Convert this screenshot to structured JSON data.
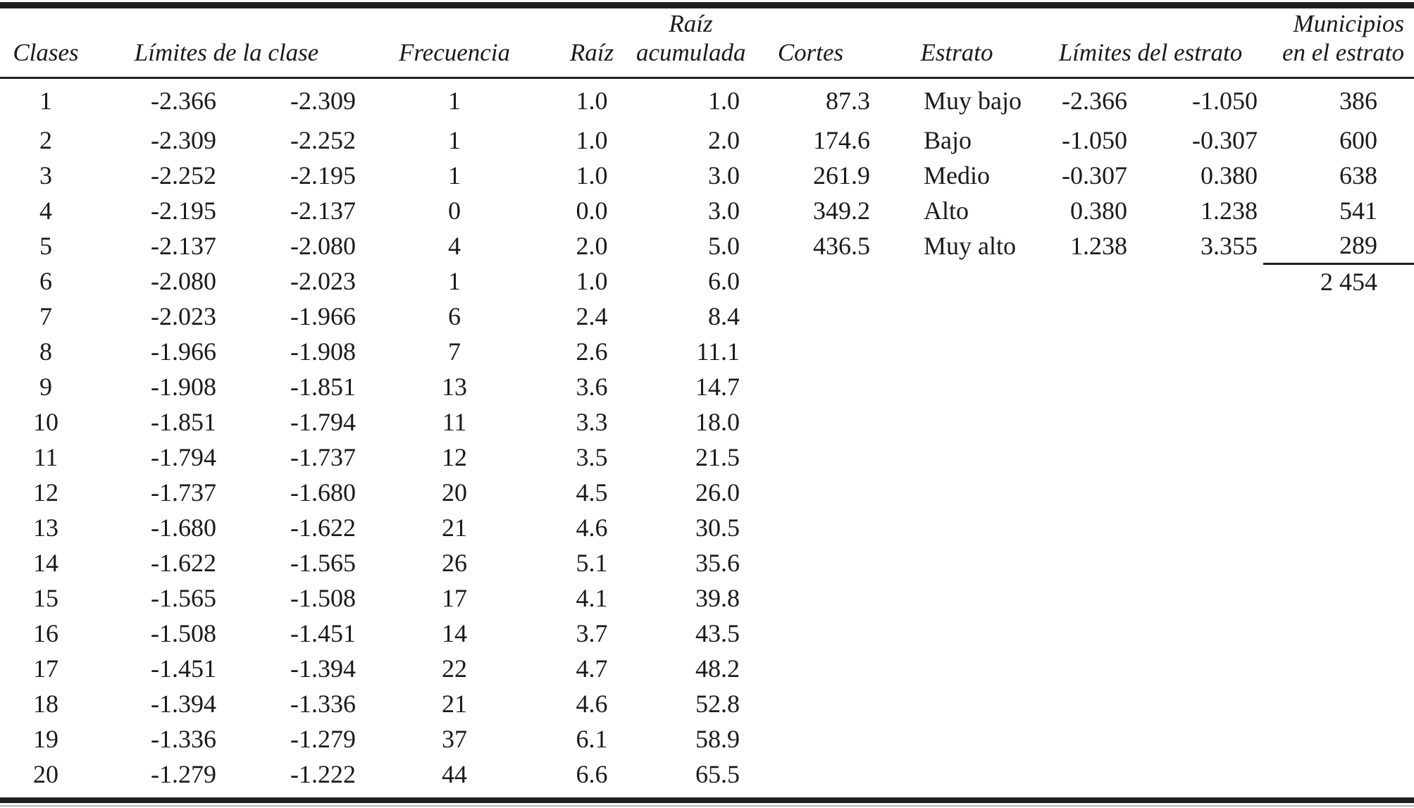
{
  "table": {
    "headers": {
      "clases": "Clases",
      "limites_clase": "Límites de la clase",
      "frecuencia": "Frecuencia",
      "raiz": "Raíz",
      "raiz_acumulada": [
        "Raíz",
        "acumulada"
      ],
      "cortes": "Cortes",
      "estrato": "Estrato",
      "limites_estrato": "Límites del estrato",
      "municipios": [
        "Municipios",
        "en el estrato"
      ]
    },
    "class_rows": [
      [
        "1",
        "-2.366",
        "-2.309",
        "1",
        "1.0",
        "1.0"
      ],
      [
        "2",
        "-2.309",
        "-2.252",
        "1",
        "1.0",
        "2.0"
      ],
      [
        "3",
        "-2.252",
        "-2.195",
        "1",
        "1.0",
        "3.0"
      ],
      [
        "4",
        "-2.195",
        "-2.137",
        "0",
        "0.0",
        "3.0"
      ],
      [
        "5",
        "-2.137",
        "-2.080",
        "4",
        "2.0",
        "5.0"
      ],
      [
        "6",
        "-2.080",
        "-2.023",
        "1",
        "1.0",
        "6.0"
      ],
      [
        "7",
        "-2.023",
        "-1.966",
        "6",
        "2.4",
        "8.4"
      ],
      [
        "8",
        "-1.966",
        "-1.908",
        "7",
        "2.6",
        "11.1"
      ],
      [
        "9",
        "-1.908",
        "-1.851",
        "13",
        "3.6",
        "14.7"
      ],
      [
        "10",
        "-1.851",
        "-1.794",
        "11",
        "3.3",
        "18.0"
      ],
      [
        "11",
        "-1.794",
        "-1.737",
        "12",
        "3.5",
        "21.5"
      ],
      [
        "12",
        "-1.737",
        "-1.680",
        "20",
        "4.5",
        "26.0"
      ],
      [
        "13",
        "-1.680",
        "-1.622",
        "21",
        "4.6",
        "30.5"
      ],
      [
        "14",
        "-1.622",
        "-1.565",
        "26",
        "5.1",
        "35.6"
      ],
      [
        "15",
        "-1.565",
        "-1.508",
        "17",
        "4.1",
        "39.8"
      ],
      [
        "16",
        "-1.508",
        "-1.451",
        "14",
        "3.7",
        "43.5"
      ],
      [
        "17",
        "-1.451",
        "-1.394",
        "22",
        "4.7",
        "48.2"
      ],
      [
        "18",
        "-1.394",
        "-1.336",
        "21",
        "4.6",
        "52.8"
      ],
      [
        "19",
        "-1.336",
        "-1.279",
        "37",
        "6.1",
        "58.9"
      ],
      [
        "20",
        "-1.279",
        "-1.222",
        "44",
        "6.6",
        "65.5"
      ]
    ],
    "strata_rows": [
      [
        "87.3",
        "Muy bajo",
        "-2.366",
        "-1.050",
        "386"
      ],
      [
        "174.6",
        "Bajo",
        "-1.050",
        "-0.307",
        "600"
      ],
      [
        "261.9",
        "Medio",
        "-0.307",
        "0.380",
        "638"
      ],
      [
        "349.2",
        "Alto",
        "0.380",
        "1.238",
        "541"
      ],
      [
        "436.5",
        "Muy alto",
        "1.238",
        "3.355",
        "289"
      ]
    ],
    "total_municipios": "2 454"
  },
  "colors": {
    "background": "#ffffff",
    "text": "#1a1a1a",
    "rule": "#1f1f1f"
  }
}
